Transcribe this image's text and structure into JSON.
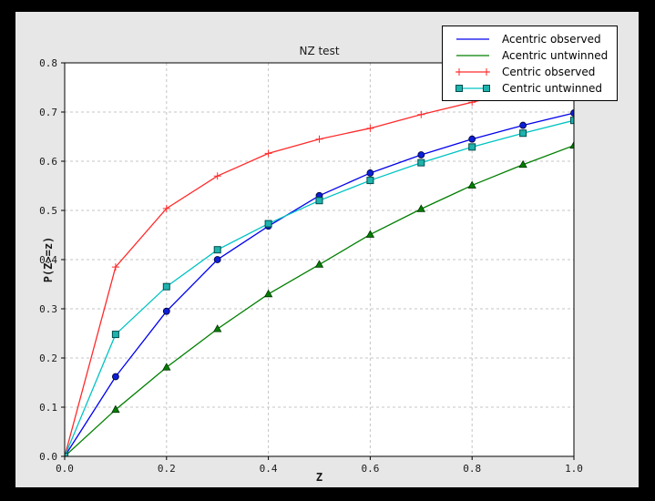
{
  "window": {
    "outer_background": "#000000",
    "figure_background": "#e7e7e7",
    "plot_background": "#ffffff",
    "grid_color": "#c4c4c4",
    "frame_color": "#000000",
    "tick_label_color": "#1a1a1a"
  },
  "chart_data": {
    "type": "line",
    "title": "NZ test",
    "xlabel": "Z",
    "ylabel": "P(Z>=z)",
    "xlim": [
      0.0,
      1.0
    ],
    "ylim": [
      0.0,
      0.8
    ],
    "grid": true,
    "legend_position": "upper-right",
    "xtick_labels": [
      "0.0",
      "0.2",
      "0.4",
      "0.6",
      "0.8",
      "1.0"
    ],
    "ytick_labels": [
      "0.0",
      "0.1",
      "0.2",
      "0.3",
      "0.4",
      "0.5",
      "0.6",
      "0.7",
      "0.8"
    ],
    "x": [
      0.0,
      0.1,
      0.2,
      0.3,
      0.4,
      0.5,
      0.6,
      0.7,
      0.8,
      0.9,
      1.0
    ],
    "series": [
      {
        "name": "Acentric observed",
        "color": "#0000ee",
        "marker": "circle",
        "marker_fill": "#0b1fd4",
        "marker_edge": "#000033",
        "legend_marker": "none",
        "values": [
          0.0,
          0.162,
          0.295,
          0.4,
          0.468,
          0.53,
          0.576,
          0.613,
          0.645,
          0.673,
          0.698
        ]
      },
      {
        "name": "Acentric untwinned",
        "color": "#007f00",
        "marker": "triangle",
        "marker_fill": "#007f00",
        "marker_edge": "#003300",
        "legend_marker": "none",
        "values": [
          0.0,
          0.095,
          0.181,
          0.259,
          0.33,
          0.39,
          0.451,
          0.503,
          0.551,
          0.593,
          0.632
        ]
      },
      {
        "name": "Centric observed",
        "color": "#ff2a2a",
        "marker": "plus",
        "marker_fill": "none",
        "marker_edge": "#ff2a2a",
        "legend_marker": "plus",
        "values": [
          0.0,
          0.385,
          0.504,
          0.57,
          0.616,
          0.645,
          0.667,
          0.695,
          0.72,
          0.744,
          0.757
        ]
      },
      {
        "name": "Centric untwinned",
        "color": "#00c3c3",
        "marker": "square",
        "marker_fill": "#1fb3ad",
        "marker_edge": "#004d4d",
        "legend_marker": "square",
        "values": [
          0.0,
          0.248,
          0.345,
          0.42,
          0.473,
          0.52,
          0.561,
          0.597,
          0.629,
          0.657,
          0.683
        ]
      }
    ]
  }
}
